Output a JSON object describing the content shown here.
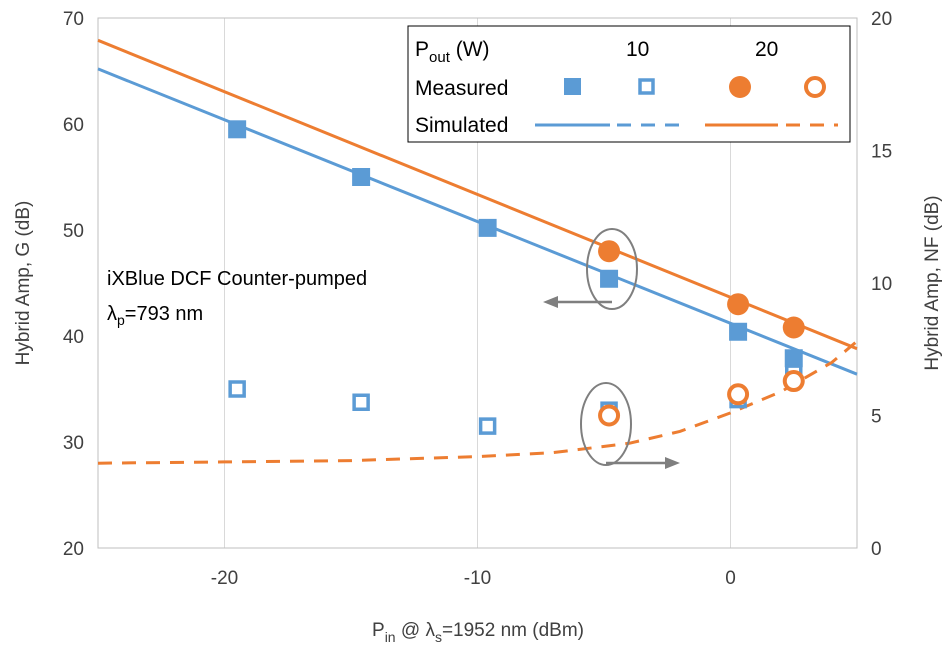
{
  "chart_data": {
    "type": "scatter",
    "xlabel": {
      "p": "P",
      "sub_in": "in",
      "at": " @ ",
      "lambda": "λ",
      "sub_s": "s",
      "rest": "=1952 nm (dBm)"
    },
    "ylabel_left": "Hybrid Amp, G (dB)",
    "ylabel_right": "Hybrid Amp, NF (dB)",
    "xlim": [
      -25,
      5
    ],
    "ylim_left": [
      20,
      70
    ],
    "ylim_right": [
      0,
      20
    ],
    "x_ticks": [
      -20,
      -10,
      0
    ],
    "x_tick_labels": [
      "-20",
      "-10",
      "0"
    ],
    "y_left_ticks": [
      20,
      30,
      40,
      50,
      60,
      70
    ],
    "y_left_tick_labels": [
      "20",
      "30",
      "40",
      "50",
      "60",
      "70"
    ],
    "y_right_ticks": [
      0,
      5,
      10,
      15,
      20
    ],
    "y_right_tick_labels": [
      "0",
      "5",
      "10",
      "15",
      "20"
    ],
    "grid": "vertical",
    "legend_placement": "top-right",
    "legend": {
      "header_p": "P",
      "header_sub": "out",
      "header_unit": " (W)",
      "col_10": "10",
      "col_20": "20",
      "row_measured": "Measured",
      "row_simulated": "Simulated"
    },
    "annotations": {
      "line1": "iXBlue DCF Counter-pumped",
      "lambda": "λ",
      "sub_p": "p",
      "line2_rest": "=793 nm"
    },
    "colors": {
      "blue": "#5b9bd5",
      "orange": "#ed7d31",
      "arrow": "#7f7f7f",
      "grid": "#d9d9d9"
    },
    "series": [
      {
        "legend_ref": "10 W measured gain",
        "axis": "left",
        "marker": "filled-square",
        "color": "#5b9bd5",
        "x": [
          -19.5,
          -14.6,
          -9.6,
          -4.8,
          0.3,
          2.5
        ],
        "y": [
          59.5,
          55.0,
          50.2,
          45.4,
          40.4,
          37.9
        ]
      },
      {
        "legend_ref": "10 W measured NF",
        "axis": "right",
        "marker": "open-square",
        "color": "#5b9bd5",
        "x": [
          -19.5,
          -14.6,
          -9.6,
          -4.8,
          0.3,
          2.5
        ],
        "y": [
          6.0,
          5.5,
          4.6,
          5.2,
          5.6,
          6.6
        ]
      },
      {
        "legend_ref": "20 W measured gain",
        "axis": "left",
        "marker": "filled-circle",
        "color": "#ed7d31",
        "x": [
          -4.8,
          0.3,
          2.5
        ],
        "y": [
          48.0,
          43.0,
          40.8
        ]
      },
      {
        "legend_ref": "20 W measured NF",
        "axis": "right",
        "marker": "open-circle",
        "color": "#ed7d31",
        "x": [
          -4.8,
          0.3,
          2.5
        ],
        "y": [
          5.0,
          5.8,
          6.3
        ]
      },
      {
        "legend_ref": "10 W simulated gain",
        "axis": "left",
        "style": "solid",
        "color": "#5b9bd5",
        "x": [
          -25,
          5
        ],
        "y": [
          65.2,
          36.4
        ]
      },
      {
        "legend_ref": "20 W simulated gain",
        "axis": "left",
        "style": "solid",
        "color": "#ed7d31",
        "x": [
          -25,
          5
        ],
        "y": [
          67.9,
          38.8
        ]
      },
      {
        "legend_ref": "20 W simulated NF",
        "axis": "right",
        "style": "dashed",
        "color": "#ed7d31",
        "x": [
          -25,
          -20,
          -15,
          -10,
          -7,
          -4,
          -2,
          0,
          2,
          4,
          5
        ],
        "y": [
          3.2,
          3.25,
          3.3,
          3.45,
          3.6,
          3.95,
          4.4,
          5.1,
          5.9,
          7.0,
          7.8
        ]
      }
    ]
  }
}
